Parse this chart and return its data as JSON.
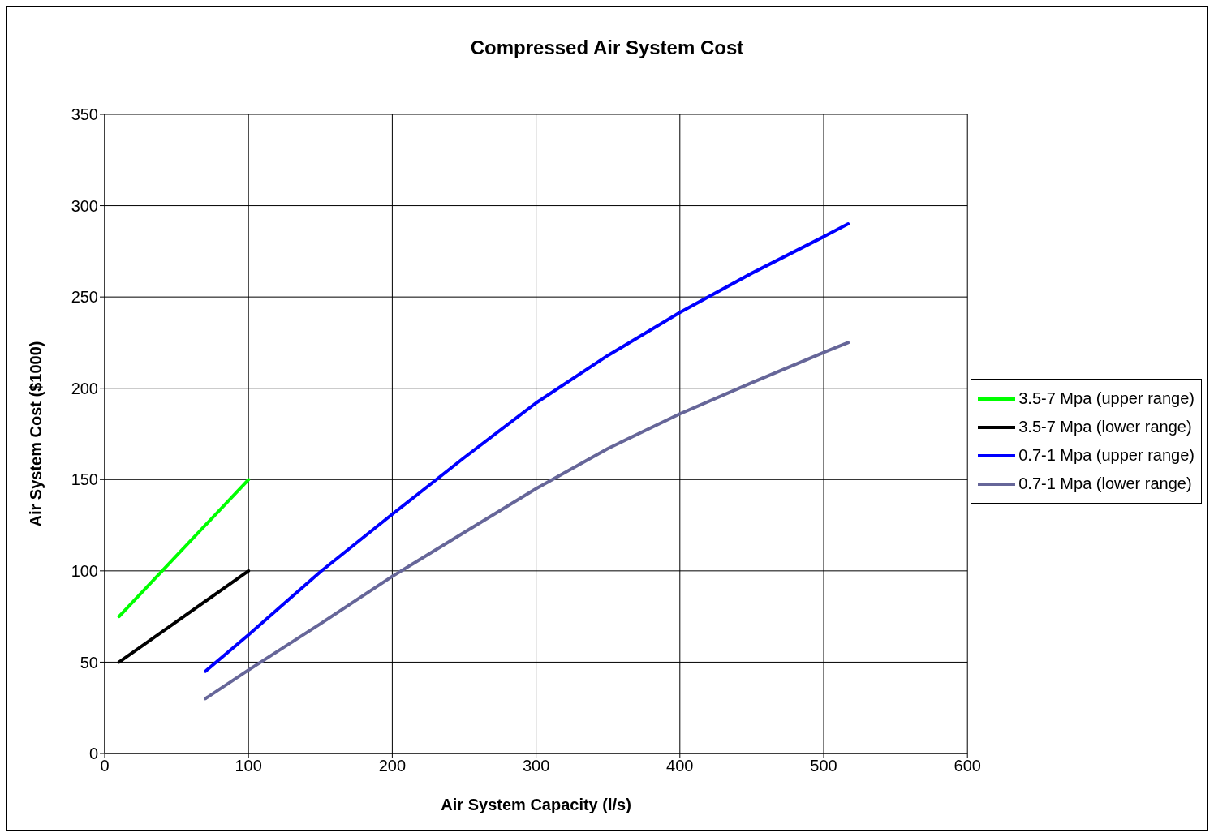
{
  "chart_data": {
    "type": "line",
    "title": "Compressed Air System Cost",
    "xlabel": "Air System Capacity (l/s)",
    "ylabel": "Air System Cost ($1000)",
    "xlim": [
      0,
      600
    ],
    "xticks": [
      0,
      100,
      200,
      300,
      400,
      500,
      600
    ],
    "ylim": [
      0,
      350
    ],
    "yticks": [
      0,
      50,
      100,
      150,
      200,
      250,
      300,
      350
    ],
    "grid": true,
    "legend": "right",
    "marker": "none",
    "line_style": "solid",
    "series": [
      {
        "name": "3.5-7 Mpa (upper range)",
        "color": "#00ff00",
        "x": [
          10,
          100
        ],
        "values": [
          75,
          150
        ]
      },
      {
        "name": "3.5-7 Mpa (lower range)",
        "color": "#000000",
        "x": [
          10,
          100
        ],
        "values": [
          50,
          100
        ]
      },
      {
        "name": "0.7-1 Mpa (upper range)",
        "color": "#0000ff",
        "x": [
          70,
          100,
          150,
          200,
          250,
          300,
          350,
          400,
          450,
          500,
          517
        ],
        "values": [
          45,
          65,
          99.5,
          131,
          162,
          192,
          218,
          241.5,
          263,
          283,
          290
        ]
      },
      {
        "name": "0.7-1 Mpa (lower range)",
        "color": "#666699",
        "x": [
          70,
          100,
          150,
          200,
          250,
          300,
          350,
          400,
          450,
          500,
          517
        ],
        "values": [
          30,
          45.7,
          71,
          97,
          121,
          145,
          167,
          186,
          203,
          219.6,
          225
        ]
      }
    ]
  }
}
